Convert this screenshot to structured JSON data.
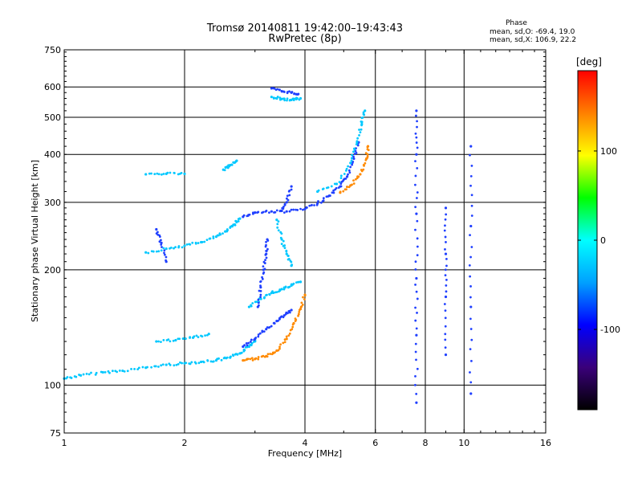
{
  "header": {
    "title": "Tromsø 20140811 19:42:00–19:43:43",
    "subtitle": "RwPretec (8p)"
  },
  "phase_info": {
    "title": "Phase",
    "line_o": "mean, sd,O: -69.4, 19.0",
    "line_x": "mean, sd,X: 106.9, 22.2"
  },
  "colorbar": {
    "unit_label": "[deg]",
    "ticks": [
      "100",
      "0",
      "-100"
    ],
    "tick_values": [
      100,
      0,
      -100
    ],
    "range": [
      -190,
      190
    ],
    "colors": [
      "#000000",
      "#3a007a",
      "#0000ff",
      "#00a0ff",
      "#00ffff",
      "#00ff00",
      "#ffff00",
      "#ff8000",
      "#ff0000"
    ]
  },
  "chart_data": {
    "type": "scatter",
    "title": "Tromsø 20140811 19:42:00–19:43:43",
    "subtitle": "RwPretec (8p)",
    "xlabel": "Frequency [MHz]",
    "ylabel": "Stationary phase Virtual Height [km]",
    "x_scale": "log",
    "y_scale": "log",
    "xlim": [
      1,
      16
    ],
    "ylim": [
      75,
      750
    ],
    "x_ticks": [
      1,
      2,
      4,
      6,
      8,
      10,
      16
    ],
    "x_tick_labels": [
      "1",
      "2",
      "4",
      "6",
      "8",
      "10",
      "16"
    ],
    "y_ticks": [
      75,
      100,
      200,
      300,
      400,
      500,
      600,
      750
    ],
    "y_tick_labels": [
      "75",
      "100",
      "200",
      "300",
      "400",
      "500",
      "600",
      "750"
    ],
    "grid": true,
    "color_by": "phase_deg",
    "traces": [
      {
        "color": "cyan",
        "points": [
          [
            1.0,
            104
          ],
          [
            1.1,
            106
          ],
          [
            1.25,
            108
          ],
          [
            1.4,
            109
          ],
          [
            1.6,
            111
          ],
          [
            1.8,
            113
          ],
          [
            2.0,
            114
          ],
          [
            2.2,
            115
          ],
          [
            2.4,
            116
          ],
          [
            2.6,
            118
          ],
          [
            2.75,
            121
          ],
          [
            2.9,
            126
          ],
          [
            3.0,
            131
          ]
        ]
      },
      {
        "color": "cyan",
        "points": [
          [
            1.6,
            222
          ],
          [
            1.8,
            227
          ],
          [
            2.0,
            231
          ],
          [
            2.2,
            236
          ],
          [
            2.4,
            244
          ],
          [
            2.55,
            252
          ],
          [
            2.65,
            262
          ],
          [
            2.75,
            272
          ]
        ]
      },
      {
        "color": "blue",
        "points": [
          [
            2.8,
            275
          ],
          [
            3.0,
            282
          ],
          [
            3.3,
            284
          ],
          [
            3.6,
            284
          ],
          [
            4.0,
            288
          ],
          [
            4.3,
            298
          ],
          [
            4.6,
            312
          ],
          [
            4.9,
            330
          ],
          [
            5.1,
            350
          ],
          [
            5.3,
            390
          ],
          [
            5.45,
            430
          ]
        ]
      },
      {
        "color": "cyan",
        "points": [
          [
            4.3,
            320
          ],
          [
            4.8,
            335
          ],
          [
            5.2,
            380
          ],
          [
            5.4,
            430
          ],
          [
            5.55,
            480
          ],
          [
            5.65,
            520
          ]
        ]
      },
      {
        "color": "orange",
        "points": [
          [
            4.9,
            318
          ],
          [
            5.2,
            332
          ],
          [
            5.5,
            355
          ],
          [
            5.7,
            390
          ],
          [
            5.75,
            420
          ]
        ]
      },
      {
        "color": "blue",
        "points": [
          [
            3.3,
            595
          ],
          [
            3.5,
            585
          ],
          [
            3.7,
            580
          ],
          [
            3.85,
            575
          ]
        ]
      },
      {
        "color": "cyan",
        "points": [
          [
            3.3,
            565
          ],
          [
            3.5,
            558
          ],
          [
            3.7,
            555
          ],
          [
            3.9,
            560
          ]
        ]
      },
      {
        "color": "orange",
        "points": [
          [
            2.8,
            116
          ],
          [
            3.0,
            117
          ],
          [
            3.2,
            119
          ],
          [
            3.4,
            123
          ],
          [
            3.6,
            132
          ],
          [
            3.75,
            145
          ],
          [
            3.9,
            158
          ],
          [
            4.0,
            172
          ]
        ]
      },
      {
        "color": "blue",
        "points": [
          [
            2.8,
            126
          ],
          [
            3.0,
            132
          ],
          [
            3.2,
            140
          ],
          [
            3.4,
            147
          ],
          [
            3.55,
            152
          ],
          [
            3.7,
            157
          ]
        ]
      },
      {
        "color": "cyan",
        "points": [
          [
            2.9,
            160
          ],
          [
            3.1,
            168
          ],
          [
            3.3,
            174
          ],
          [
            3.5,
            178
          ],
          [
            3.7,
            182
          ],
          [
            3.9,
            186
          ]
        ]
      },
      {
        "color": "blue",
        "points": [
          [
            3.05,
            160
          ],
          [
            3.1,
            180
          ],
          [
            3.15,
            200
          ],
          [
            3.2,
            220
          ],
          [
            3.22,
            240
          ]
        ]
      },
      {
        "color": "cyan",
        "points": [
          [
            3.4,
            270
          ],
          [
            3.5,
            240
          ],
          [
            3.6,
            220
          ],
          [
            3.7,
            205
          ]
        ]
      },
      {
        "color": "cyan",
        "points": [
          [
            1.7,
            130
          ],
          [
            1.9,
            131
          ],
          [
            2.1,
            133
          ],
          [
            2.3,
            136
          ]
        ]
      },
      {
        "color": "cyan",
        "points": [
          [
            1.6,
            355
          ],
          [
            1.8,
            356
          ],
          [
            2.0,
            356
          ]
        ]
      },
      {
        "color": "cyan",
        "points": [
          [
            2.5,
            365
          ],
          [
            2.6,
            375
          ],
          [
            2.7,
            385
          ]
        ]
      },
      {
        "color": "blue",
        "points": [
          [
            1.7,
            255
          ],
          [
            1.75,
            235
          ],
          [
            1.8,
            210
          ]
        ]
      },
      {
        "color": "blue",
        "points": [
          [
            3.7,
            330
          ],
          [
            3.6,
            300
          ],
          [
            3.5,
            285
          ]
        ]
      },
      {
        "color": "blue",
        "points": [
          [
            7.6,
            90
          ],
          [
            7.6,
            135
          ],
          [
            7.6,
            190
          ],
          [
            7.6,
            280
          ],
          [
            7.6,
            400
          ],
          [
            7.6,
            520
          ]
        ]
      },
      {
        "color": "blue",
        "points": [
          [
            10.4,
            95
          ],
          [
            10.4,
            160
          ],
          [
            10.4,
            260
          ],
          [
            10.4,
            420
          ]
        ]
      },
      {
        "color": "blue",
        "points": [
          [
            9.0,
            120
          ],
          [
            9.0,
            170
          ],
          [
            9.0,
            220
          ],
          [
            9.0,
            290
          ]
        ]
      }
    ]
  }
}
